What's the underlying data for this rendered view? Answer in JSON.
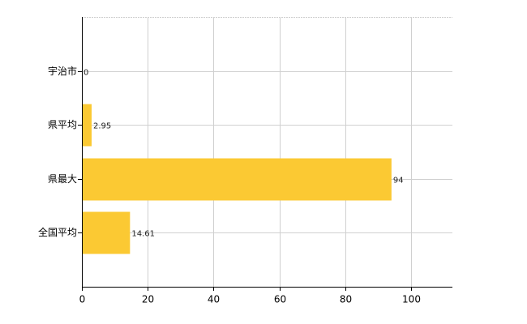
{
  "chart_data": {
    "type": "barh",
    "categories": [
      "宇治市",
      "県平均",
      "県最大",
      "全国平均"
    ],
    "values": [
      0,
      2.95,
      94,
      14.61
    ],
    "color": "#fbc933",
    "xlim": [
      0,
      112.5
    ],
    "xticks": [
      0,
      20,
      40,
      60,
      80,
      100
    ],
    "grid": true
  }
}
